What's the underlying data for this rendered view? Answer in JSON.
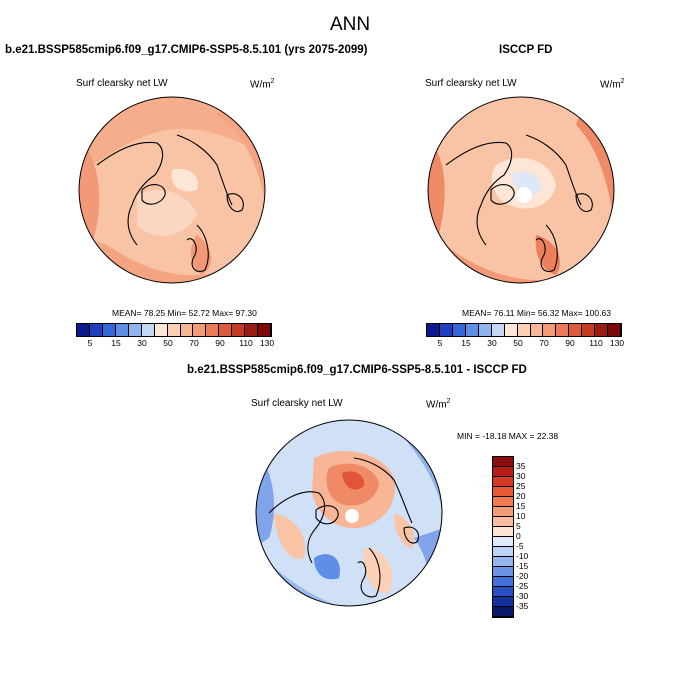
{
  "title": "ANN",
  "colorbar_colors": [
    "#0a1a8e",
    "#1f3fbf",
    "#3566d9",
    "#5f8ee6",
    "#8fb4f0",
    "#c3d8f5",
    "#fde8d8",
    "#fbd0b6",
    "#f7b695",
    "#f39a77",
    "#ec7b59",
    "#de5a3c",
    "#c43a25",
    "#9c1b12",
    "#7a0a0a"
  ],
  "panel1": {
    "title": "b.e21.BSSP585cmip6.f09_g17.CMIP6-SSP5-8.5.101 (yrs 2075-2099)",
    "variable": "Surf clearsky net LW",
    "unit": "W/m",
    "unit_sup": "2",
    "stats": "MEAN=  78.25  Min=  52.72  Max=  97.30",
    "colorbar_ticks": [
      "5",
      "15",
      "30",
      "50",
      "70",
      "90",
      "110",
      "130"
    ]
  },
  "panel2": {
    "title": "ISCCP FD",
    "variable": "Surf clearsky net LW",
    "unit": "W/m",
    "unit_sup": "2",
    "stats": "MEAN=  76.11  Min=  56.32  Max= 100.63",
    "colorbar_ticks": [
      "5",
      "15",
      "30",
      "50",
      "70",
      "90",
      "110",
      "130"
    ]
  },
  "panel3": {
    "title": "b.e21.BSSP585cmip6.f09_g17.CMIP6-SSP5-8.5.101 - ISCCP FD",
    "variable": "Surf clearsky net LW",
    "unit": "W/m",
    "unit_sup": "2",
    "stats": "MIN = -18.18 MAX =  22.38",
    "colorbar_ticks": [
      "35",
      "30",
      "25",
      "20",
      "15",
      "10",
      "5",
      "0",
      "-5",
      "-10",
      "-15",
      "-20",
      "-25",
      "-30",
      "-35"
    ],
    "colorbar_colors": [
      "#8c0d0d",
      "#b81d14",
      "#d63a22",
      "#e85a35",
      "#f27a50",
      "#f59c74",
      "#f9bea0",
      "#fde3d3",
      "#dfeafa",
      "#bcd3f5",
      "#93b6ef",
      "#6a93e6",
      "#4470d8",
      "#2a4fc2",
      "#14309e",
      "#08186b"
    ]
  }
}
